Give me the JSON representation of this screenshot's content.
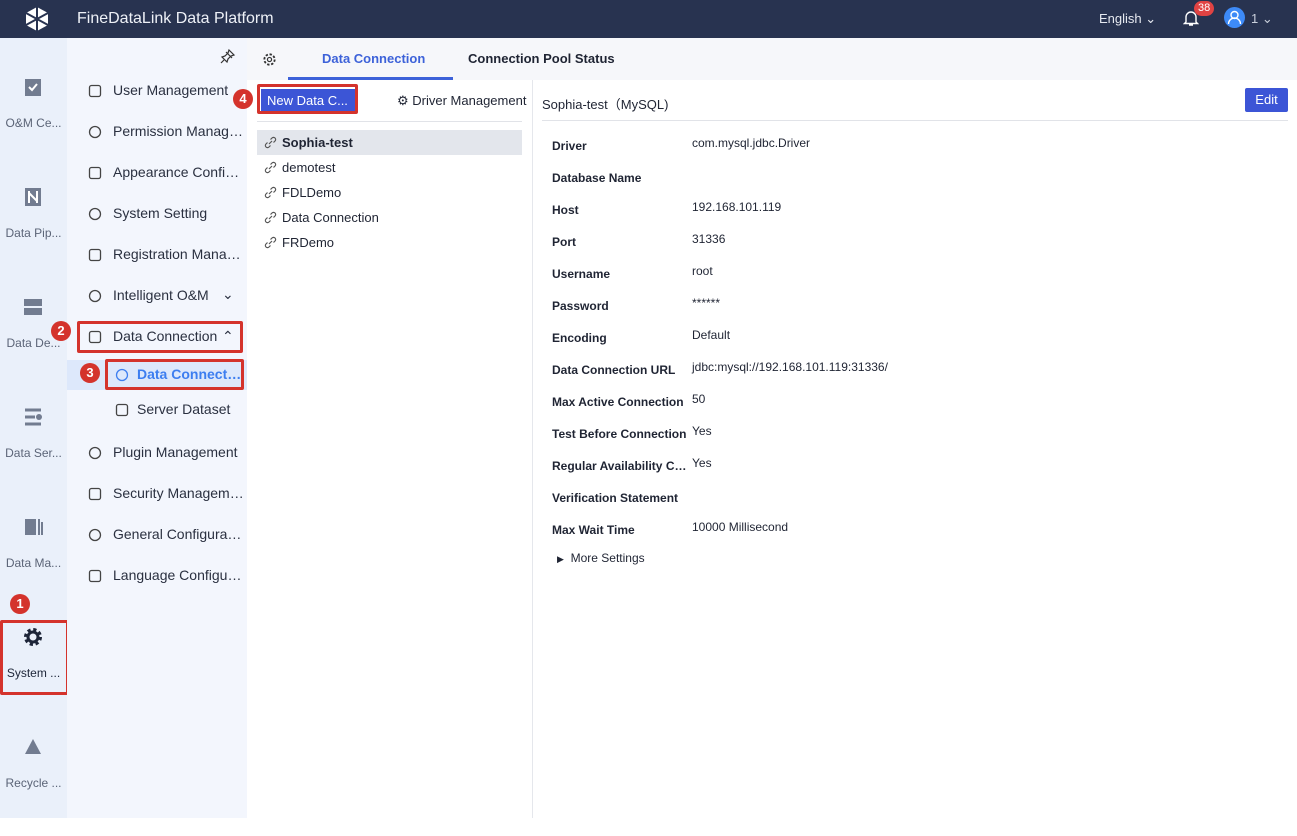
{
  "header": {
    "title": "FineDataLink Data Platform",
    "language": "English",
    "notifications": "38",
    "user": "1"
  },
  "rail": [
    {
      "label": "O&M Ce...",
      "icon": "clipboard-check-icon"
    },
    {
      "label": "Data Pip...",
      "icon": "pipeline-icon"
    },
    {
      "label": "Data De...",
      "icon": "server-icon"
    },
    {
      "label": "Data Ser...",
      "icon": "service-icon"
    },
    {
      "label": "Data Ma...",
      "icon": "data-map-icon"
    },
    {
      "label": "System ...",
      "icon": "gear-icon",
      "active": true
    },
    {
      "label": "Recycle ...",
      "icon": "recycle-icon"
    }
  ],
  "sidebar": {
    "items": [
      {
        "label": "User Management"
      },
      {
        "label": "Permission Management"
      },
      {
        "label": "Appearance Configuration"
      },
      {
        "label": "System Setting"
      },
      {
        "label": "Registration Management"
      },
      {
        "label": "Intelligent O&M"
      },
      {
        "label": "Data Connection"
      },
      {
        "label": "Data Connection Management"
      },
      {
        "label": "Server Dataset"
      },
      {
        "label": "Plugin Management"
      },
      {
        "label": "Security Management"
      },
      {
        "label": "General Configuration"
      },
      {
        "label": "Language Configuration"
      }
    ]
  },
  "annotations": [
    "1",
    "2",
    "3",
    "4"
  ],
  "tabs": [
    {
      "label": "Data Connection",
      "active": true
    },
    {
      "label": "Connection Pool Status"
    }
  ],
  "list": {
    "new_button": "New Data C...",
    "driver_management": "Driver Management",
    "items": [
      "Sophia-test",
      "demotest",
      "FDLDemo",
      "Data Connection",
      "FRDemo"
    ],
    "selected": "Sophia-test"
  },
  "detail": {
    "title": "Sophia-test（MySQL)",
    "edit": "Edit",
    "more": "More Settings",
    "fields": [
      {
        "k": "Driver",
        "v": "com.mysql.jdbc.Driver"
      },
      {
        "k": "Database Name",
        "v": ""
      },
      {
        "k": "Host",
        "v": "192.168.101.119"
      },
      {
        "k": "Port",
        "v": "31336"
      },
      {
        "k": "Username",
        "v": "root"
      },
      {
        "k": "Password",
        "v": "******"
      },
      {
        "k": "Encoding",
        "v": "Default"
      },
      {
        "k": "Data Connection URL",
        "v": "jdbc:mysql://192.168.101.119:31336/"
      },
      {
        "k": "Max Active Connection",
        "v": "50"
      },
      {
        "k": "Test Before Connection",
        "v": "Yes"
      },
      {
        "k": "Regular Availability Check",
        "v": "Yes"
      },
      {
        "k": "Verification Statement",
        "v": ""
      },
      {
        "k": "Max Wait Time",
        "v": "10000 Millisecond"
      }
    ]
  },
  "colors": {
    "header": "#283350",
    "accent": "#3c55d6",
    "annotation": "#d4332c"
  }
}
